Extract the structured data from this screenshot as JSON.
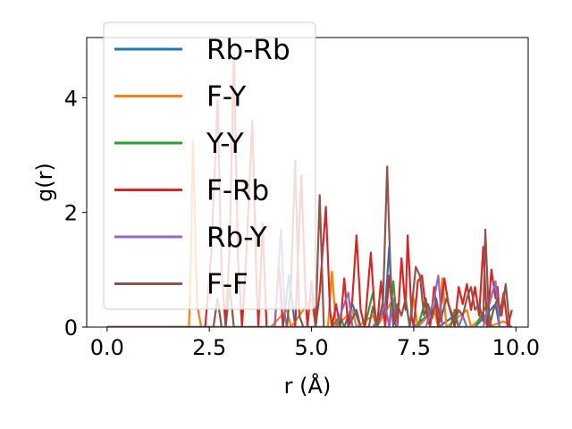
{
  "chart_data": {
    "type": "line",
    "xlabel": "r (Å)",
    "ylabel": "g(r)",
    "xlim": [
      -0.5,
      10.3
    ],
    "ylim": [
      0,
      5.05
    ],
    "x_ticks": [
      0.0,
      2.5,
      5.0,
      7.5,
      10.0
    ],
    "x_tick_labels": [
      "0.0",
      "2.5",
      "5.0",
      "7.5",
      "10.0"
    ],
    "y_ticks": [
      0,
      2,
      4
    ],
    "y_tick_labels": [
      "0",
      "2",
      "4"
    ],
    "grid": false,
    "legend_placement": "upper-left",
    "series": [
      {
        "name": "Rb-Rb",
        "color": "#1f77b4",
        "points": [
          [
            0,
            0
          ],
          [
            4.0,
            0
          ],
          [
            4.3,
            0
          ],
          [
            4.45,
            0.9
          ],
          [
            4.6,
            0
          ],
          [
            5.0,
            0
          ],
          [
            5.8,
            0
          ],
          [
            6.0,
            0.4
          ],
          [
            6.2,
            0
          ],
          [
            6.5,
            0
          ],
          [
            6.8,
            0.3
          ],
          [
            6.9,
            1.4
          ],
          [
            7.0,
            0
          ],
          [
            7.5,
            0
          ],
          [
            8.0,
            0.3
          ],
          [
            8.1,
            0
          ],
          [
            8.5,
            0.2
          ],
          [
            8.6,
            0
          ],
          [
            9.0,
            0
          ],
          [
            9.5,
            0.4
          ],
          [
            9.6,
            0
          ],
          [
            9.9,
            0
          ]
        ]
      },
      {
        "name": "F-Y",
        "color": "#ff7f0e",
        "points": [
          [
            0,
            0
          ],
          [
            2.0,
            0
          ],
          [
            2.05,
            1.2
          ],
          [
            2.1,
            3.25
          ],
          [
            2.2,
            0.4
          ],
          [
            2.3,
            0
          ],
          [
            4.0,
            0
          ],
          [
            4.4,
            0.3
          ],
          [
            4.5,
            0
          ],
          [
            5.0,
            0.5
          ],
          [
            5.1,
            0
          ],
          [
            5.4,
            0
          ],
          [
            5.5,
            0.97
          ],
          [
            5.6,
            0
          ],
          [
            6.0,
            0.3
          ],
          [
            6.1,
            0
          ],
          [
            6.5,
            0.2
          ],
          [
            6.6,
            0
          ],
          [
            7.0,
            0.5
          ],
          [
            7.1,
            0
          ],
          [
            7.4,
            0
          ],
          [
            7.5,
            0.5
          ],
          [
            7.6,
            0
          ],
          [
            8.0,
            0.3
          ],
          [
            8.1,
            0
          ],
          [
            8.2,
            0.85
          ],
          [
            8.3,
            0
          ],
          [
            8.8,
            0.3
          ],
          [
            8.9,
            0
          ],
          [
            9.2,
            0.2
          ],
          [
            9.3,
            0
          ],
          [
            9.7,
            0.1
          ],
          [
            9.9,
            0
          ]
        ]
      },
      {
        "name": "Y-Y",
        "color": "#2ca02c",
        "points": [
          [
            0,
            0
          ],
          [
            5.5,
            0
          ],
          [
            5.7,
            0.2
          ],
          [
            5.8,
            0
          ],
          [
            6.0,
            0
          ],
          [
            6.3,
            0
          ],
          [
            6.5,
            0.6
          ],
          [
            6.6,
            0
          ],
          [
            6.9,
            0
          ],
          [
            7.0,
            0.8
          ],
          [
            7.1,
            0
          ],
          [
            7.6,
            0
          ],
          [
            7.8,
            0.5
          ],
          [
            7.9,
            0
          ],
          [
            8.4,
            0
          ],
          [
            8.5,
            0.3
          ],
          [
            8.6,
            0
          ],
          [
            9.0,
            0
          ],
          [
            9.3,
            0.4
          ],
          [
            9.4,
            0
          ],
          [
            9.9,
            0
          ]
        ]
      },
      {
        "name": "F-Rb",
        "color": "#d62728",
        "points": [
          [
            0,
            0
          ],
          [
            2.4,
            0
          ],
          [
            2.55,
            1.3
          ],
          [
            2.7,
            3.95
          ],
          [
            2.8,
            1.0
          ],
          [
            2.9,
            0
          ],
          [
            3.0,
            1.5
          ],
          [
            3.1,
            4.75
          ],
          [
            3.2,
            1.2
          ],
          [
            3.3,
            0
          ],
          [
            3.4,
            1.2
          ],
          [
            3.55,
            3.6
          ],
          [
            3.65,
            0.9
          ],
          [
            3.7,
            0
          ],
          [
            3.8,
            1.8
          ],
          [
            3.9,
            0
          ],
          [
            4.1,
            0
          ],
          [
            4.2,
            1.1
          ],
          [
            4.3,
            0
          ],
          [
            4.6,
            0
          ],
          [
            4.75,
            2.65
          ],
          [
            4.85,
            0.6
          ],
          [
            4.9,
            0
          ],
          [
            5.0,
            0.8
          ],
          [
            5.1,
            0
          ],
          [
            5.2,
            0.6
          ],
          [
            5.35,
            2.1
          ],
          [
            5.45,
            0.3
          ],
          [
            5.5,
            0
          ],
          [
            5.6,
            0.4
          ],
          [
            5.7,
            0
          ],
          [
            5.8,
            0.85
          ],
          [
            5.9,
            0
          ],
          [
            6.0,
            0.5
          ],
          [
            6.1,
            1.6
          ],
          [
            6.2,
            0.3
          ],
          [
            6.3,
            0
          ],
          [
            6.45,
            1.3
          ],
          [
            6.55,
            0.2
          ],
          [
            6.6,
            0
          ],
          [
            6.7,
            0.8
          ],
          [
            6.8,
            0
          ],
          [
            6.9,
            0.9
          ],
          [
            7.0,
            0.1
          ],
          [
            7.1,
            0
          ],
          [
            7.2,
            1.2
          ],
          [
            7.3,
            0.3
          ],
          [
            7.35,
            1.6
          ],
          [
            7.45,
            0.2
          ],
          [
            7.5,
            0
          ],
          [
            7.6,
            0.8
          ],
          [
            7.7,
            0.9
          ],
          [
            7.8,
            0.3
          ],
          [
            7.9,
            0
          ],
          [
            8.0,
            0.7
          ],
          [
            8.1,
            0
          ],
          [
            8.25,
            0.85
          ],
          [
            8.35,
            0.4
          ],
          [
            8.5,
            0
          ],
          [
            8.6,
            0.7
          ],
          [
            8.7,
            0.4
          ],
          [
            8.8,
            0.75
          ],
          [
            8.9,
            0.3
          ],
          [
            9.0,
            0.7
          ],
          [
            9.1,
            0.2
          ],
          [
            9.2,
            1.4
          ],
          [
            9.3,
            0
          ],
          [
            9.4,
            1.0
          ],
          [
            9.5,
            0.5
          ],
          [
            9.55,
            0.7
          ],
          [
            9.6,
            0.2
          ],
          [
            9.7,
            0.6
          ],
          [
            9.8,
            0
          ],
          [
            9.9,
            0.3
          ]
        ]
      },
      {
        "name": "Rb-Y",
        "color": "#9467bd",
        "points": [
          [
            0,
            0
          ],
          [
            4.1,
            0
          ],
          [
            4.15,
            0.6
          ],
          [
            4.25,
            1.7
          ],
          [
            4.35,
            0.2
          ],
          [
            4.4,
            0
          ],
          [
            5.6,
            0
          ],
          [
            5.9,
            0.6
          ],
          [
            6.0,
            0
          ],
          [
            6.6,
            0
          ],
          [
            6.8,
            0.4
          ],
          [
            6.9,
            0
          ],
          [
            7.0,
            0.5
          ],
          [
            7.1,
            0
          ],
          [
            7.8,
            0
          ],
          [
            8.0,
            0.5
          ],
          [
            8.1,
            0.9
          ],
          [
            8.2,
            0
          ],
          [
            8.6,
            0
          ],
          [
            8.7,
            0.2
          ],
          [
            8.8,
            0
          ],
          [
            9.2,
            0
          ],
          [
            9.5,
            0.8
          ],
          [
            9.6,
            0
          ],
          [
            9.9,
            0
          ]
        ]
      },
      {
        "name": "F-F",
        "color": "#8c564b",
        "points": [
          [
            0,
            0
          ],
          [
            2.6,
            0
          ],
          [
            2.7,
            0.5
          ],
          [
            2.8,
            0
          ],
          [
            2.9,
            0
          ],
          [
            3.0,
            0.7
          ],
          [
            3.1,
            0
          ],
          [
            4.4,
            0
          ],
          [
            4.5,
            0.8
          ],
          [
            4.6,
            2.9
          ],
          [
            4.7,
            0.2
          ],
          [
            4.8,
            0
          ],
          [
            5.1,
            0
          ],
          [
            5.2,
            2.3
          ],
          [
            5.3,
            0
          ],
          [
            5.9,
            0
          ],
          [
            6.1,
            0.3
          ],
          [
            6.2,
            0
          ],
          [
            6.4,
            0
          ],
          [
            6.5,
            0.35
          ],
          [
            6.6,
            0
          ],
          [
            6.75,
            0.45
          ],
          [
            6.85,
            2.8
          ],
          [
            6.95,
            0.5
          ],
          [
            7.05,
            0.1
          ],
          [
            7.1,
            0.4
          ],
          [
            7.2,
            0.2
          ],
          [
            7.3,
            0.5
          ],
          [
            7.4,
            0
          ],
          [
            7.55,
            1.05
          ],
          [
            7.65,
            0.9
          ],
          [
            7.75,
            0.2
          ],
          [
            7.85,
            0.4
          ],
          [
            7.95,
            0.15
          ],
          [
            8.05,
            0.5
          ],
          [
            8.15,
            0.1
          ],
          [
            8.3,
            0.5
          ],
          [
            8.4,
            0.3
          ],
          [
            8.5,
            0.1
          ],
          [
            8.6,
            0.3
          ],
          [
            8.7,
            0.2
          ],
          [
            8.8,
            0.5
          ],
          [
            8.9,
            0.7
          ],
          [
            9.0,
            0.3
          ],
          [
            9.1,
            0.4
          ],
          [
            9.2,
            0.1
          ],
          [
            9.25,
            1.7
          ],
          [
            9.35,
            0
          ],
          [
            9.45,
            0.3
          ],
          [
            9.55,
            0.5
          ],
          [
            9.65,
            0.2
          ],
          [
            9.75,
            0.75
          ],
          [
            9.85,
            0
          ],
          [
            9.9,
            0
          ]
        ]
      }
    ]
  }
}
